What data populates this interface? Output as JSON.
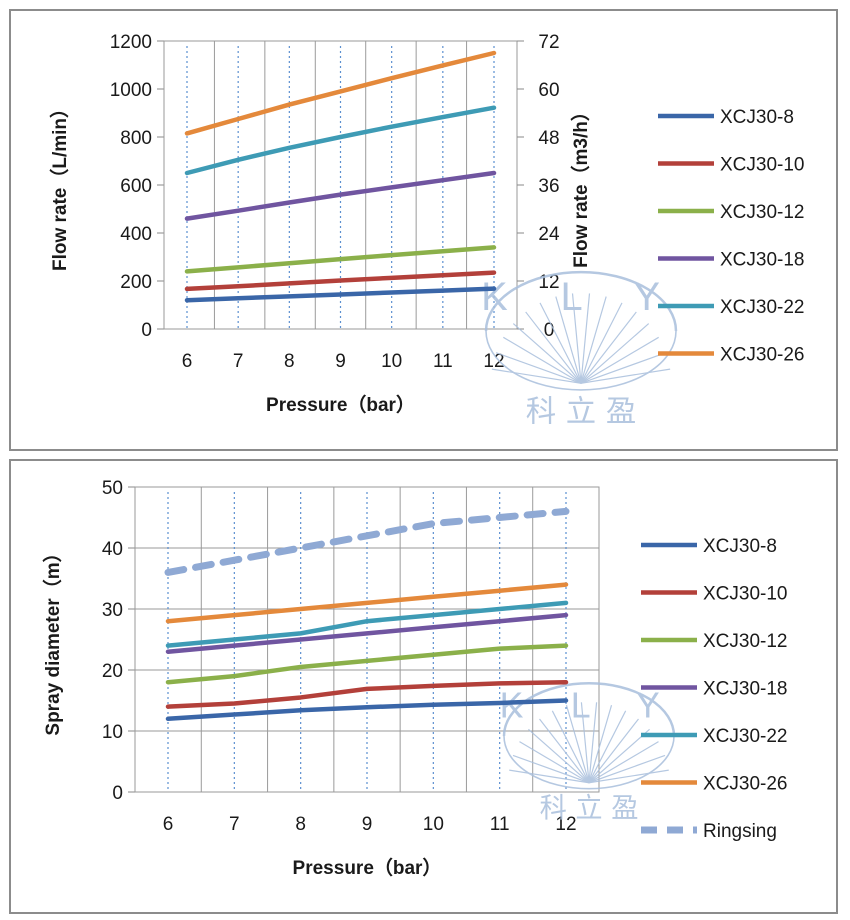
{
  "chart_data": [
    {
      "type": "line",
      "title": "",
      "xlabel": "Pressure（bar）",
      "ylabel": "Flow rate（L/min）",
      "y2label": "Flow rate（m3/h）",
      "x": [
        6,
        7,
        8,
        9,
        10,
        11,
        12
      ],
      "ylim": [
        0,
        1200
      ],
      "yticks": [
        0,
        200,
        400,
        600,
        800,
        1000,
        1200
      ],
      "y2lim": [
        0,
        72
      ],
      "y2ticks": [
        0,
        12,
        24,
        36,
        48,
        60,
        72
      ],
      "grid": "vertical",
      "legend": "right",
      "series": [
        {
          "name": "XCJ30-8",
          "color": "#3a66a8",
          "dash": false,
          "values": [
            120,
            128,
            136,
            144,
            152,
            160,
            168
          ]
        },
        {
          "name": "XCJ30-10",
          "color": "#b3403a",
          "dash": false,
          "values": [
            167,
            178,
            190,
            202,
            213,
            224,
            235
          ]
        },
        {
          "name": "XCJ30-12",
          "color": "#8bb04a",
          "dash": false,
          "values": [
            240,
            257,
            274,
            291,
            308,
            324,
            340
          ]
        },
        {
          "name": "XCJ30-18",
          "color": "#7055a0",
          "dash": false,
          "values": [
            460,
            493,
            527,
            560,
            590,
            620,
            650
          ]
        },
        {
          "name": "XCJ30-22",
          "color": "#3e9bb5",
          "dash": false,
          "values": [
            650,
            705,
            755,
            800,
            843,
            883,
            922
          ]
        },
        {
          "name": "XCJ30-26",
          "color": "#e4893b",
          "dash": false,
          "values": [
            815,
            875,
            935,
            990,
            1045,
            1098,
            1150
          ]
        }
      ]
    },
    {
      "type": "line",
      "title": "",
      "xlabel": "Pressure（bar）",
      "ylabel": "Spray diameter（m）",
      "x": [
        6,
        7,
        8,
        9,
        10,
        11,
        12
      ],
      "ylim": [
        0,
        50
      ],
      "yticks": [
        0,
        10,
        20,
        30,
        40,
        50
      ],
      "grid": "both",
      "legend": "right",
      "series": [
        {
          "name": "XCJ30-8",
          "color": "#3a66a8",
          "dash": false,
          "values": [
            12,
            12.7,
            13.4,
            13.9,
            14.3,
            14.6,
            15
          ]
        },
        {
          "name": "XCJ30-10",
          "color": "#b3403a",
          "dash": false,
          "values": [
            14,
            14.5,
            15.5,
            16.9,
            17.4,
            17.8,
            18
          ]
        },
        {
          "name": "XCJ30-12",
          "color": "#8bb04a",
          "dash": false,
          "values": [
            18,
            19,
            20.5,
            21.5,
            22.5,
            23.5,
            24
          ]
        },
        {
          "name": "XCJ30-18",
          "color": "#7055a0",
          "dash": false,
          "values": [
            23,
            24,
            25,
            26,
            27,
            28,
            29
          ]
        },
        {
          "name": "XCJ30-22",
          "color": "#3e9bb5",
          "dash": false,
          "values": [
            24,
            25,
            26,
            28,
            29,
            30,
            31
          ]
        },
        {
          "name": "XCJ30-26",
          "color": "#e4893b",
          "dash": false,
          "values": [
            28,
            29,
            30,
            31,
            32,
            33,
            34
          ]
        },
        {
          "name": "Ringsing",
          "color": "#8fa9d4",
          "dash": true,
          "values": [
            36,
            38,
            40,
            42,
            44,
            45,
            46
          ]
        }
      ]
    }
  ],
  "watermark": {
    "letters": "K L Y",
    "chinese": "科 立 盈",
    "color": "#a9bfdc"
  }
}
